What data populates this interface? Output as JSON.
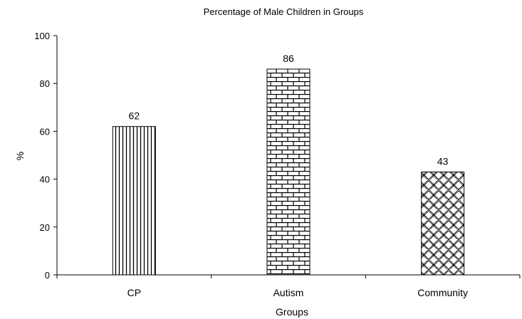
{
  "chart_data": {
    "type": "bar",
    "title": "Percentage of Male Children in Groups",
    "xlabel": "Groups",
    "ylabel": "%",
    "categories": [
      "CP",
      "Autism",
      "Community"
    ],
    "values": [
      62,
      86,
      43
    ],
    "data_labels": [
      "62",
      "86",
      "43"
    ],
    "ylim": [
      0,
      100
    ],
    "yticks": [
      0,
      20,
      40,
      60,
      80,
      100
    ],
    "ytick_labels": [
      "0",
      "20",
      "40",
      "60",
      "80",
      "100"
    ],
    "bar_patterns": [
      "vertical-lines",
      "brick",
      "crosshatch"
    ],
    "grid": false,
    "legend": "none",
    "colors": {
      "bar_fill": "#ffffff",
      "pattern_stroke": "#000000",
      "axis": "#000000"
    }
  }
}
